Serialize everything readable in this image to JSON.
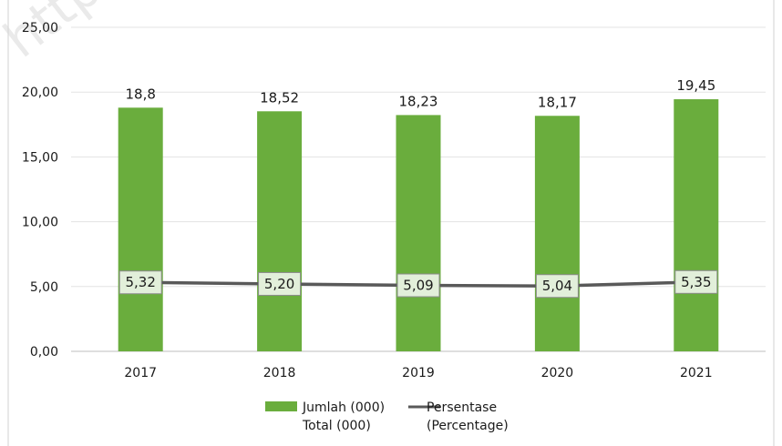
{
  "watermark": "https:/",
  "chart_data": {
    "type": "bar",
    "categories": [
      "2017",
      "2018",
      "2019",
      "2020",
      "2021"
    ],
    "ylim": [
      0,
      25
    ],
    "ytick_values": [
      0,
      5,
      10,
      15,
      20,
      25
    ],
    "ytick_labels": [
      "0,00",
      "5,00",
      "10,00",
      "15,00",
      "20,00",
      "25,00"
    ],
    "grid": true,
    "legend_position": "bottom",
    "series": [
      {
        "name": "Jumlah (000)",
        "name_line2": "Total (000)",
        "type": "bar",
        "color": "#6aad3d",
        "values": [
          18.8,
          18.52,
          18.23,
          18.17,
          19.45
        ],
        "labels": [
          "18,8",
          "18,52",
          "18,23",
          "18,17",
          "19,45"
        ]
      },
      {
        "name": "Persentase",
        "name_line2": "(Percentage)",
        "type": "line",
        "color": "#595959",
        "values": [
          5.32,
          5.2,
          5.09,
          5.04,
          5.35
        ],
        "labels": [
          "5,32",
          "5,20",
          "5,09",
          "5,04",
          "5,35"
        ],
        "label_box_color": "#e2efda"
      }
    ]
  }
}
